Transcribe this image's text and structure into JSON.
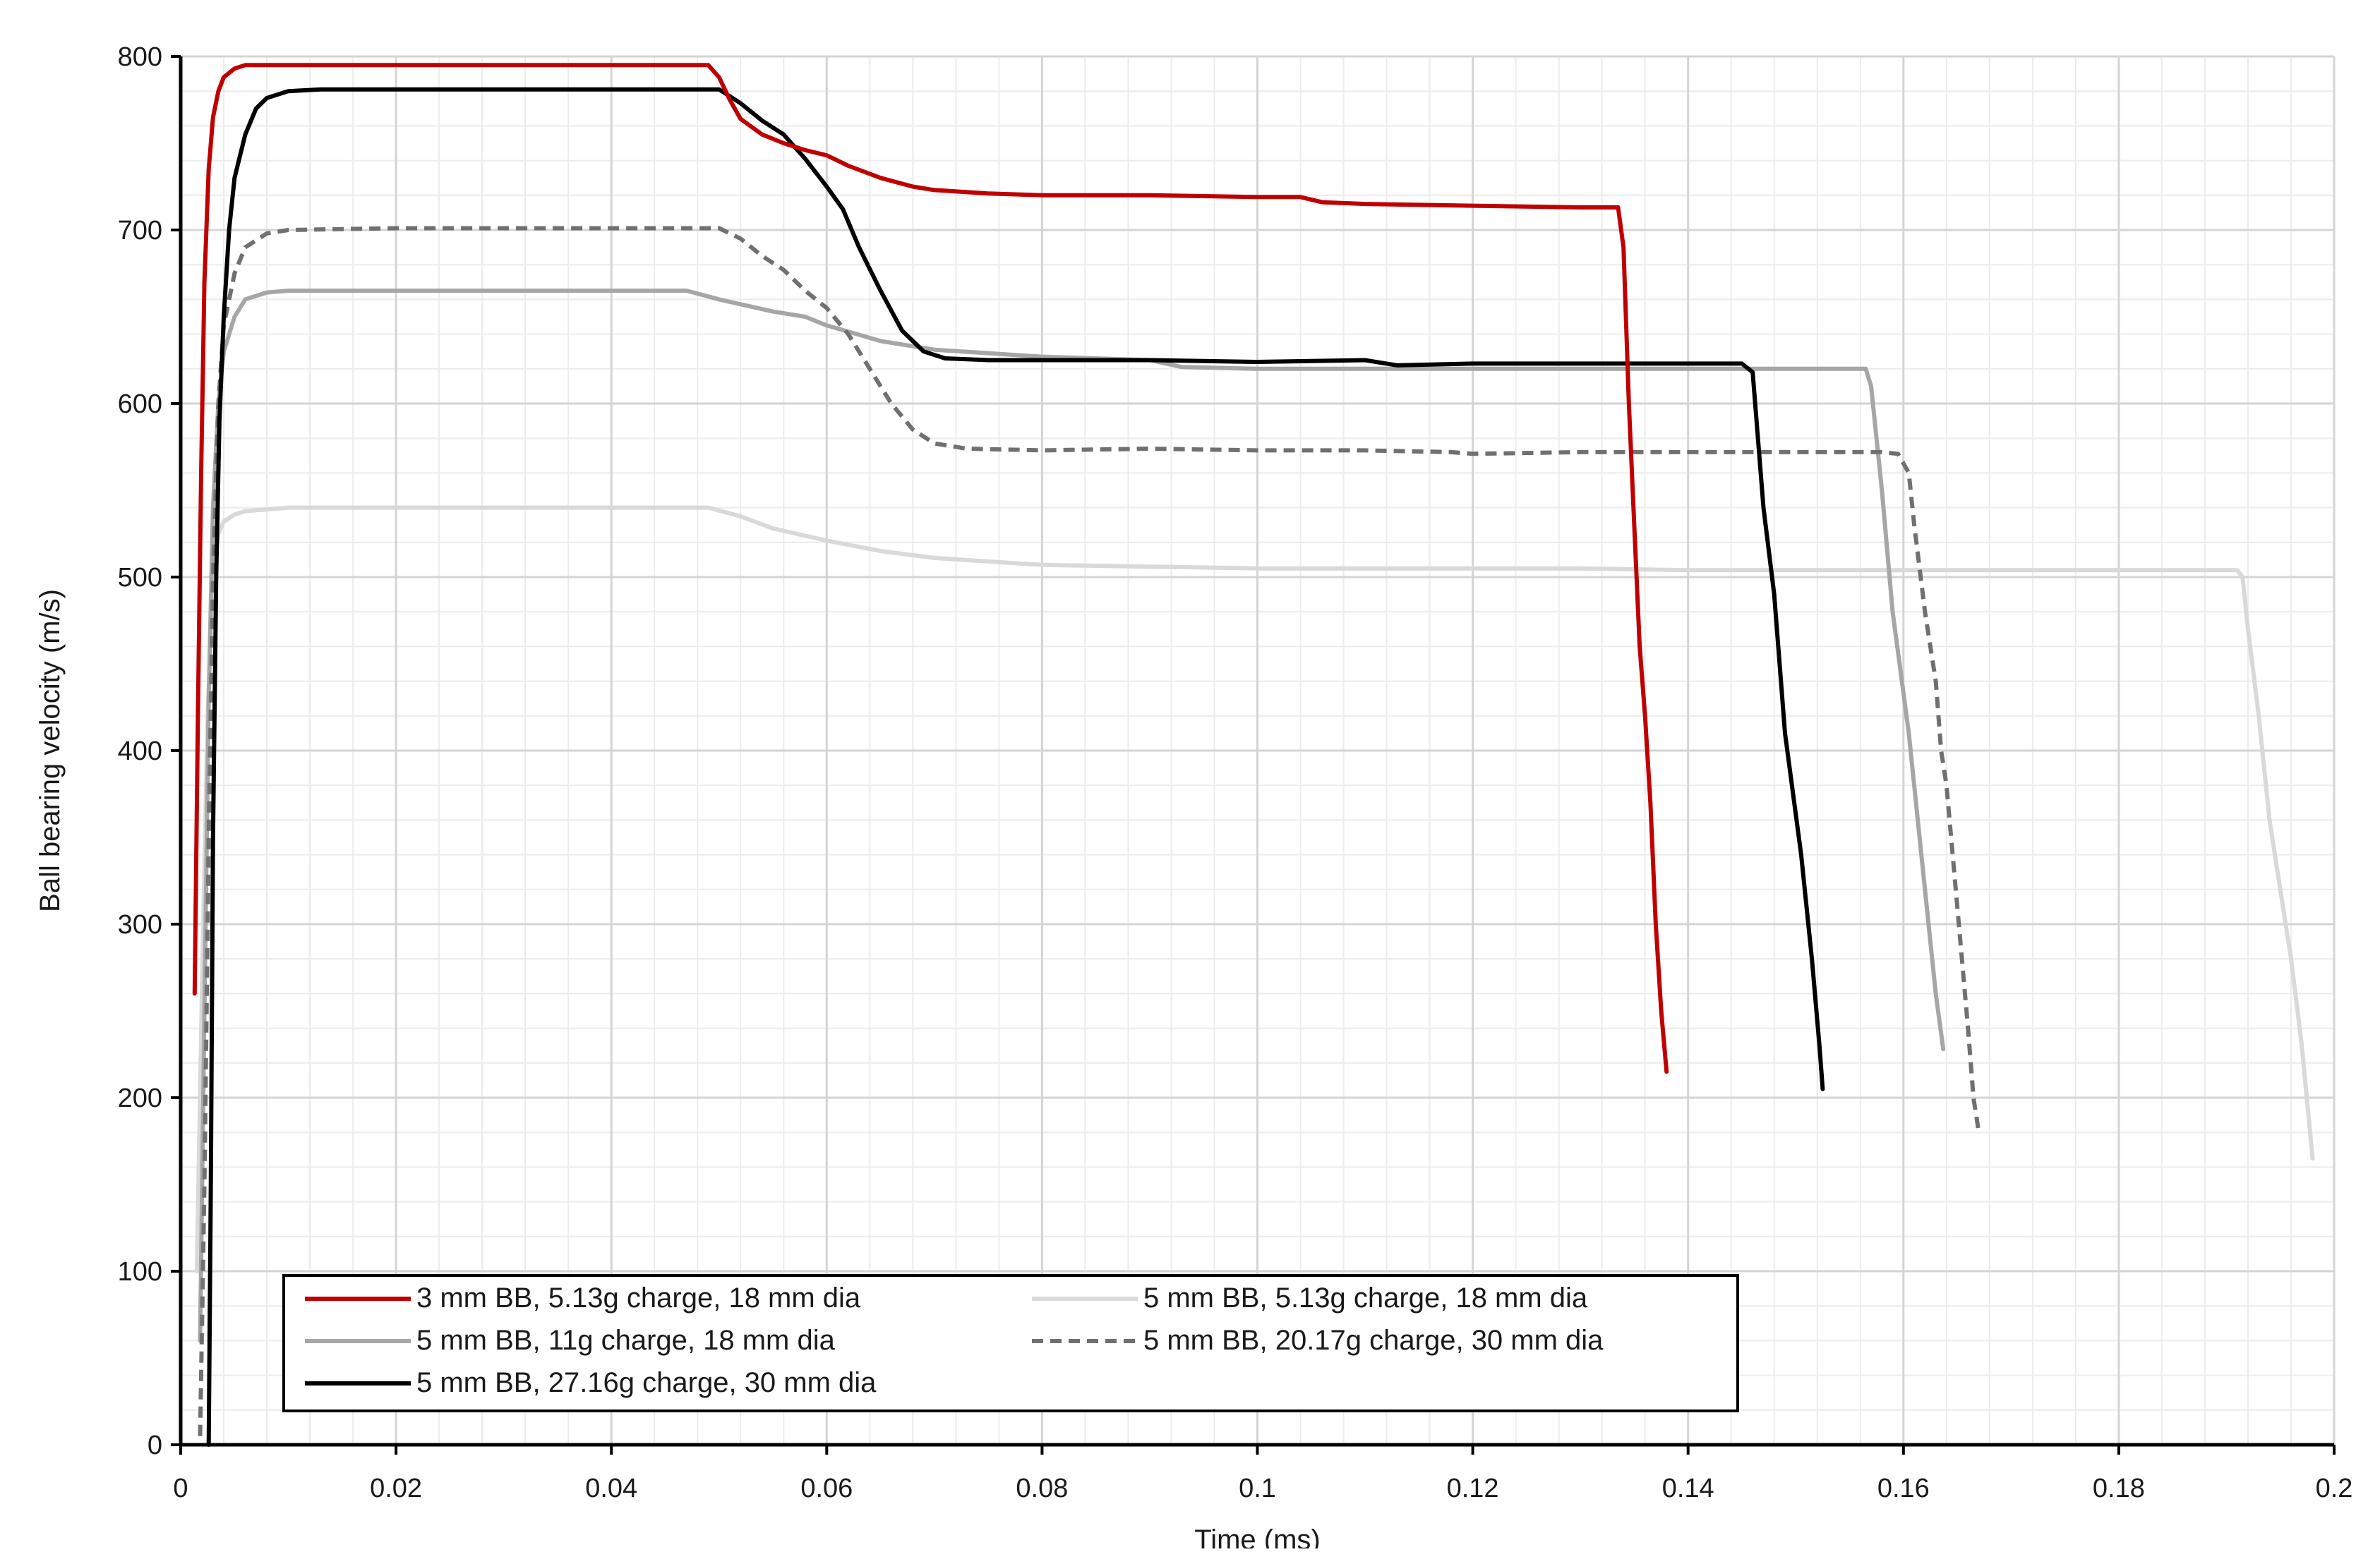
{
  "chart_data": {
    "type": "line",
    "xlabel": "Time (ms)",
    "ylabel": "Ball bearing velocity (m/s)",
    "xlim": [
      0,
      0.2
    ],
    "ylim": [
      0,
      800
    ],
    "x_ticks": [
      0,
      0.02,
      0.04,
      0.06,
      0.08,
      0.1,
      0.12,
      0.14,
      0.16,
      0.18,
      0.2
    ],
    "x_tick_labels": [
      "0",
      "0.02",
      "0.04",
      "0.06",
      "0.08",
      "0.1",
      "0.12",
      "0.14",
      "0.16",
      "0.18",
      "0.2"
    ],
    "y_ticks": [
      0,
      100,
      200,
      300,
      400,
      500,
      600,
      700,
      800
    ],
    "y_tick_labels": [
      "0",
      "100",
      "200",
      "300",
      "400",
      "500",
      "600",
      "700",
      "800"
    ],
    "grid": {
      "major": true,
      "minor": true
    },
    "legend_position": "bottom-left",
    "series": [
      {
        "name": "3 mm BB, 5.13g charge, 18 mm dia",
        "color": "#c00000",
        "dash": "solid",
        "points": [
          [
            0.0013,
            260
          ],
          [
            0.0016,
            420
          ],
          [
            0.0019,
            560
          ],
          [
            0.0022,
            670
          ],
          [
            0.0026,
            735
          ],
          [
            0.003,
            765
          ],
          [
            0.0035,
            780
          ],
          [
            0.004,
            788
          ],
          [
            0.005,
            793
          ],
          [
            0.006,
            795
          ],
          [
            0.008,
            795
          ],
          [
            0.01,
            795
          ],
          [
            0.02,
            795
          ],
          [
            0.03,
            795
          ],
          [
            0.04,
            795
          ],
          [
            0.049,
            795
          ],
          [
            0.05,
            788
          ],
          [
            0.051,
            775
          ],
          [
            0.052,
            764
          ],
          [
            0.054,
            755
          ],
          [
            0.056,
            750
          ],
          [
            0.058,
            746
          ],
          [
            0.06,
            743
          ],
          [
            0.062,
            737
          ],
          [
            0.065,
            730
          ],
          [
            0.068,
            725
          ],
          [
            0.07,
            723
          ],
          [
            0.075,
            721
          ],
          [
            0.08,
            720
          ],
          [
            0.09,
            720
          ],
          [
            0.1,
            719
          ],
          [
            0.104,
            719
          ],
          [
            0.106,
            716
          ],
          [
            0.11,
            715
          ],
          [
            0.12,
            714
          ],
          [
            0.13,
            713
          ],
          [
            0.1335,
            713
          ],
          [
            0.134,
            690
          ],
          [
            0.1345,
            600
          ],
          [
            0.135,
            530
          ],
          [
            0.1355,
            460
          ],
          [
            0.136,
            420
          ],
          [
            0.1365,
            370
          ],
          [
            0.137,
            300
          ],
          [
            0.1375,
            250
          ],
          [
            0.138,
            215
          ]
        ]
      },
      {
        "name": "5 mm BB, 5.13g charge, 18 mm dia",
        "color": "#d9d9d9",
        "dash": "solid",
        "points": [
          [
            0.0015,
            100
          ],
          [
            0.002,
            270
          ],
          [
            0.0025,
            420
          ],
          [
            0.003,
            500
          ],
          [
            0.0035,
            525
          ],
          [
            0.004,
            532
          ],
          [
            0.005,
            536
          ],
          [
            0.006,
            538
          ],
          [
            0.008,
            539
          ],
          [
            0.01,
            540
          ],
          [
            0.02,
            540
          ],
          [
            0.03,
            540
          ],
          [
            0.04,
            540
          ],
          [
            0.049,
            540
          ],
          [
            0.052,
            535
          ],
          [
            0.055,
            528
          ],
          [
            0.06,
            521
          ],
          [
            0.065,
            515
          ],
          [
            0.07,
            511
          ],
          [
            0.075,
            509
          ],
          [
            0.08,
            507
          ],
          [
            0.09,
            506
          ],
          [
            0.1,
            505
          ],
          [
            0.11,
            505
          ],
          [
            0.12,
            505
          ],
          [
            0.13,
            505
          ],
          [
            0.14,
            504
          ],
          [
            0.15,
            504
          ],
          [
            0.16,
            504
          ],
          [
            0.17,
            504
          ],
          [
            0.18,
            504
          ],
          [
            0.191,
            504
          ],
          [
            0.1915,
            500
          ],
          [
            0.192,
            470
          ],
          [
            0.193,
            420
          ],
          [
            0.194,
            360
          ],
          [
            0.195,
            320
          ],
          [
            0.196,
            280
          ],
          [
            0.197,
            230
          ],
          [
            0.198,
            165
          ]
        ]
      },
      {
        "name": "5 mm BB, 11g charge, 18 mm dia",
        "color": "#a6a6a6",
        "dash": "solid",
        "points": [
          [
            0.0018,
            60
          ],
          [
            0.0022,
            250
          ],
          [
            0.0026,
            430
          ],
          [
            0.003,
            540
          ],
          [
            0.0035,
            600
          ],
          [
            0.004,
            630
          ],
          [
            0.005,
            650
          ],
          [
            0.006,
            660
          ],
          [
            0.008,
            664
          ],
          [
            0.01,
            665
          ],
          [
            0.02,
            665
          ],
          [
            0.03,
            665
          ],
          [
            0.04,
            665
          ],
          [
            0.047,
            665
          ],
          [
            0.05,
            660
          ],
          [
            0.055,
            653
          ],
          [
            0.058,
            650
          ],
          [
            0.06,
            645
          ],
          [
            0.065,
            636
          ],
          [
            0.07,
            631
          ],
          [
            0.08,
            627
          ],
          [
            0.09,
            625
          ],
          [
            0.093,
            621
          ],
          [
            0.1,
            620
          ],
          [
            0.11,
            620
          ],
          [
            0.12,
            620
          ],
          [
            0.13,
            620
          ],
          [
            0.14,
            620
          ],
          [
            0.15,
            620
          ],
          [
            0.1565,
            620
          ],
          [
            0.157,
            610
          ],
          [
            0.158,
            550
          ],
          [
            0.159,
            480
          ],
          [
            0.1605,
            410
          ],
          [
            0.162,
            320
          ],
          [
            0.163,
            260
          ],
          [
            0.1637,
            228
          ]
        ]
      },
      {
        "name": "5 mm BB, 20.17g charge, 30 mm dia",
        "color": "#707070",
        "dash": "dashed",
        "points": [
          [
            0.0018,
            5
          ],
          [
            0.0022,
            150
          ],
          [
            0.0026,
            350
          ],
          [
            0.003,
            500
          ],
          [
            0.0035,
            600
          ],
          [
            0.004,
            645
          ],
          [
            0.005,
            675
          ],
          [
            0.006,
            690
          ],
          [
            0.008,
            698
          ],
          [
            0.01,
            700
          ],
          [
            0.02,
            701
          ],
          [
            0.03,
            701
          ],
          [
            0.04,
            701
          ],
          [
            0.05,
            701
          ],
          [
            0.052,
            695
          ],
          [
            0.054,
            685
          ],
          [
            0.056,
            677
          ],
          [
            0.058,
            665
          ],
          [
            0.06,
            655
          ],
          [
            0.062,
            640
          ],
          [
            0.064,
            620
          ],
          [
            0.066,
            600
          ],
          [
            0.068,
            585
          ],
          [
            0.07,
            577
          ],
          [
            0.073,
            574
          ],
          [
            0.08,
            573
          ],
          [
            0.09,
            574
          ],
          [
            0.1,
            573
          ],
          [
            0.11,
            573
          ],
          [
            0.118,
            572
          ],
          [
            0.12,
            571
          ],
          [
            0.13,
            572
          ],
          [
            0.14,
            572
          ],
          [
            0.15,
            572
          ],
          [
            0.158,
            572
          ],
          [
            0.1595,
            571
          ],
          [
            0.1605,
            560
          ],
          [
            0.161,
            530
          ],
          [
            0.162,
            480
          ],
          [
            0.163,
            440
          ],
          [
            0.1635,
            400
          ],
          [
            0.164,
            380
          ],
          [
            0.165,
            310
          ],
          [
            0.166,
            240
          ],
          [
            0.1665,
            200
          ],
          [
            0.167,
            180
          ]
        ]
      },
      {
        "name": "5 mm BB, 27.16g charge, 30 mm dia",
        "color": "#000000",
        "dash": "solid",
        "points": [
          [
            0.0026,
            0
          ],
          [
            0.0028,
            150
          ],
          [
            0.003,
            350
          ],
          [
            0.0033,
            500
          ],
          [
            0.0036,
            590
          ],
          [
            0.004,
            650
          ],
          [
            0.0045,
            700
          ],
          [
            0.005,
            730
          ],
          [
            0.006,
            755
          ],
          [
            0.007,
            770
          ],
          [
            0.008,
            776
          ],
          [
            0.01,
            780
          ],
          [
            0.013,
            781
          ],
          [
            0.02,
            781
          ],
          [
            0.03,
            781
          ],
          [
            0.04,
            781
          ],
          [
            0.05,
            781
          ],
          [
            0.052,
            773
          ],
          [
            0.054,
            763
          ],
          [
            0.056,
            755
          ],
          [
            0.058,
            741
          ],
          [
            0.06,
            725
          ],
          [
            0.0615,
            712
          ],
          [
            0.063,
            690
          ],
          [
            0.065,
            665
          ],
          [
            0.067,
            642
          ],
          [
            0.069,
            630
          ],
          [
            0.071,
            626
          ],
          [
            0.075,
            625
          ],
          [
            0.08,
            625
          ],
          [
            0.09,
            625
          ],
          [
            0.1,
            624
          ],
          [
            0.11,
            625
          ],
          [
            0.113,
            622
          ],
          [
            0.12,
            623
          ],
          [
            0.13,
            623
          ],
          [
            0.14,
            623
          ],
          [
            0.145,
            623
          ],
          [
            0.146,
            618
          ],
          [
            0.147,
            540
          ],
          [
            0.148,
            490
          ],
          [
            0.149,
            410
          ],
          [
            0.1505,
            340
          ],
          [
            0.1515,
            280
          ],
          [
            0.1522,
            230
          ],
          [
            0.1525,
            205
          ]
        ]
      }
    ]
  }
}
